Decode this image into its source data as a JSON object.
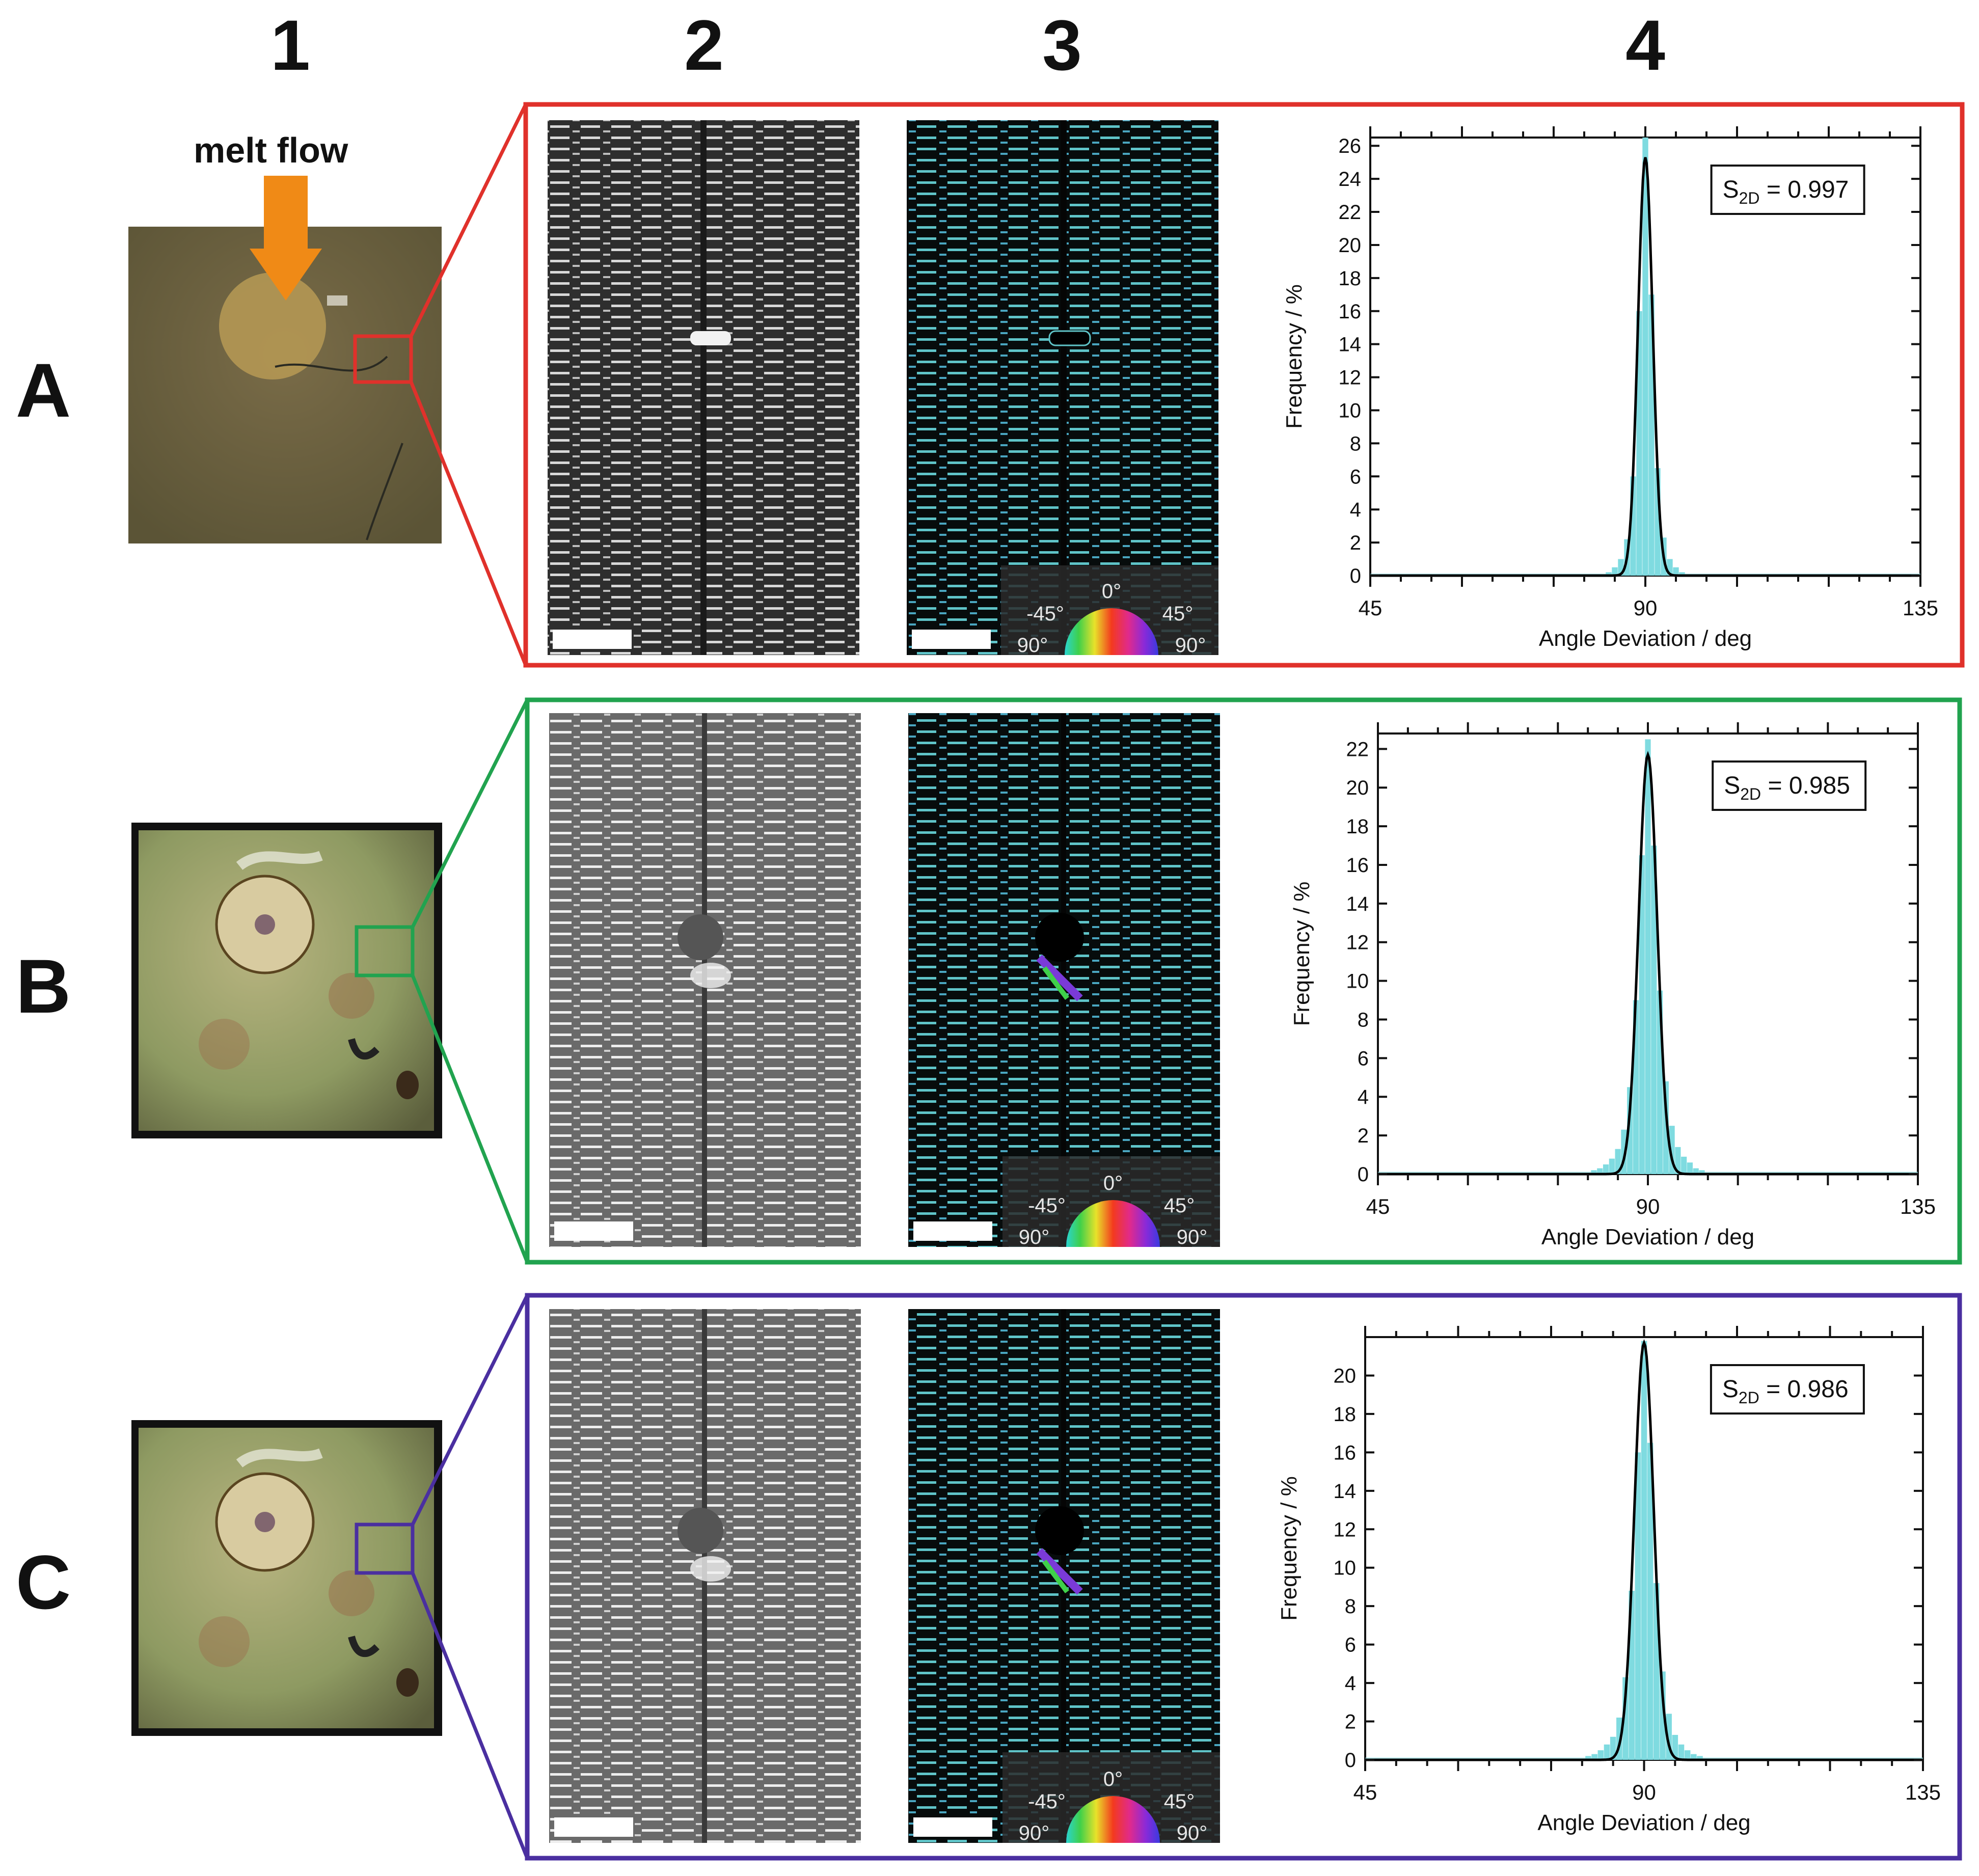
{
  "column_labels": [
    "1",
    "2",
    "3",
    "4"
  ],
  "row_labels": [
    "A",
    "B",
    "C"
  ],
  "melt_flow_label": "melt flow",
  "colors": {
    "row_A": "#e0312b",
    "row_B": "#21a34f",
    "row_C": "#4a2fa0",
    "arrow": "#f08a16",
    "histogram": "#7fdbe0"
  },
  "color_wheel": {
    "top": "0°",
    "left": "-45°",
    "right": "45°",
    "bottom_left": "90°",
    "bottom_right": "90°"
  },
  "panels": [
    {
      "row": "A",
      "s2d": "0.997"
    },
    {
      "row": "B",
      "s2d": "0.985"
    },
    {
      "row": "C",
      "s2d": "0.986"
    }
  ],
  "chart_data": [
    {
      "type": "bar",
      "row": "A",
      "xlabel": "Angle Deviation / deg",
      "ylabel": "Frequency / %",
      "xlim": [
        45,
        135
      ],
      "ylim": [
        0,
        26.5
      ],
      "xticks": [
        45,
        90,
        135
      ],
      "yticks": [
        0,
        2,
        4,
        6,
        8,
        10,
        12,
        14,
        16,
        18,
        20,
        22,
        24,
        26
      ],
      "annotation": "S2D = 0.997",
      "peak_x": 90,
      "bins_x": [
        84,
        85,
        86,
        87,
        88,
        89,
        90,
        91,
        92,
        93,
        94,
        95,
        96
      ],
      "values": [
        0.2,
        0.5,
        1.0,
        2.2,
        6.0,
        16.0,
        26.5,
        17.0,
        6.5,
        2.3,
        1.0,
        0.5,
        0.2
      ],
      "fit_peak": 25.3,
      "fit_sigma": 1.2
    },
    {
      "type": "bar",
      "row": "B",
      "xlabel": "Angle Deviation / deg",
      "ylabel": "Frequency / %",
      "xlim": [
        45,
        135
      ],
      "ylim": [
        0,
        22.8
      ],
      "xticks": [
        45,
        90,
        135
      ],
      "yticks": [
        0,
        2,
        4,
        6,
        8,
        10,
        12,
        14,
        16,
        18,
        20,
        22
      ],
      "annotation": "S2D = 0.985",
      "peak_x": 90,
      "bins_x": [
        81,
        82,
        83,
        84,
        85,
        86,
        87,
        88,
        89,
        90,
        91,
        92,
        93,
        94,
        95,
        96,
        97,
        98,
        99
      ],
      "values": [
        0.2,
        0.3,
        0.5,
        0.8,
        1.3,
        2.3,
        4.5,
        9.0,
        16.5,
        22.5,
        17.0,
        9.5,
        4.8,
        2.5,
        1.4,
        0.9,
        0.6,
        0.3,
        0.2
      ],
      "fit_peak": 21.7,
      "fit_sigma": 1.55
    },
    {
      "type": "bar",
      "row": "C",
      "xlabel": "Angle Deviation / deg",
      "ylabel": "Frequency / %",
      "xlim": [
        45,
        135
      ],
      "ylim": [
        0,
        22
      ],
      "xticks": [
        45,
        90,
        135
      ],
      "yticks": [
        0,
        2,
        4,
        6,
        8,
        10,
        12,
        14,
        16,
        18,
        20
      ],
      "annotation": "S2D = 0.986",
      "peak_x": 90,
      "bins_x": [
        81,
        82,
        83,
        84,
        85,
        86,
        87,
        88,
        89,
        90,
        91,
        92,
        93,
        94,
        95,
        96,
        97,
        98,
        99
      ],
      "values": [
        0.2,
        0.3,
        0.5,
        0.8,
        1.2,
        2.2,
        4.3,
        8.8,
        16.0,
        21.8,
        16.5,
        9.2,
        4.6,
        2.4,
        1.3,
        0.8,
        0.5,
        0.3,
        0.2
      ],
      "fit_peak": 21.7,
      "fit_sigma": 1.55
    }
  ]
}
